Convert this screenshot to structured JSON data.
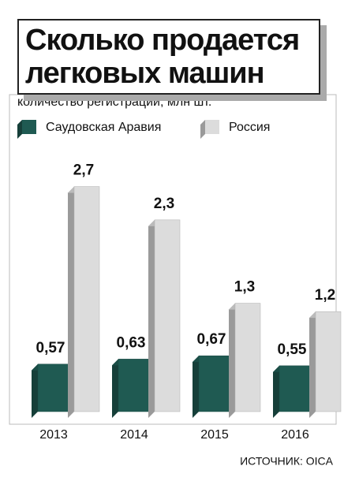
{
  "chart_data": {
    "type": "bar3d",
    "title": "Сколько продается легковых машин",
    "subtitle": "количество регистраций, млн шт.",
    "source": "ИСТОЧНИК: OICA",
    "categories": [
      "2013",
      "2014",
      "2015",
      "2016"
    ],
    "series": [
      {
        "name": "Саудовская Аравия",
        "color": "#1f5a52",
        "values": [
          0.57,
          0.63,
          0.67,
          0.55
        ],
        "value_labels": [
          "0,57",
          "0,63",
          "0,67",
          "0,55"
        ]
      },
      {
        "name": "Россия",
        "color": "#dcdcdc",
        "values": [
          2.7,
          2.3,
          1.3,
          1.2
        ],
        "value_labels": [
          "2,7",
          "2,3",
          "1,3",
          "1,2"
        ]
      }
    ],
    "ylim": [
      0,
      2.8
    ]
  }
}
